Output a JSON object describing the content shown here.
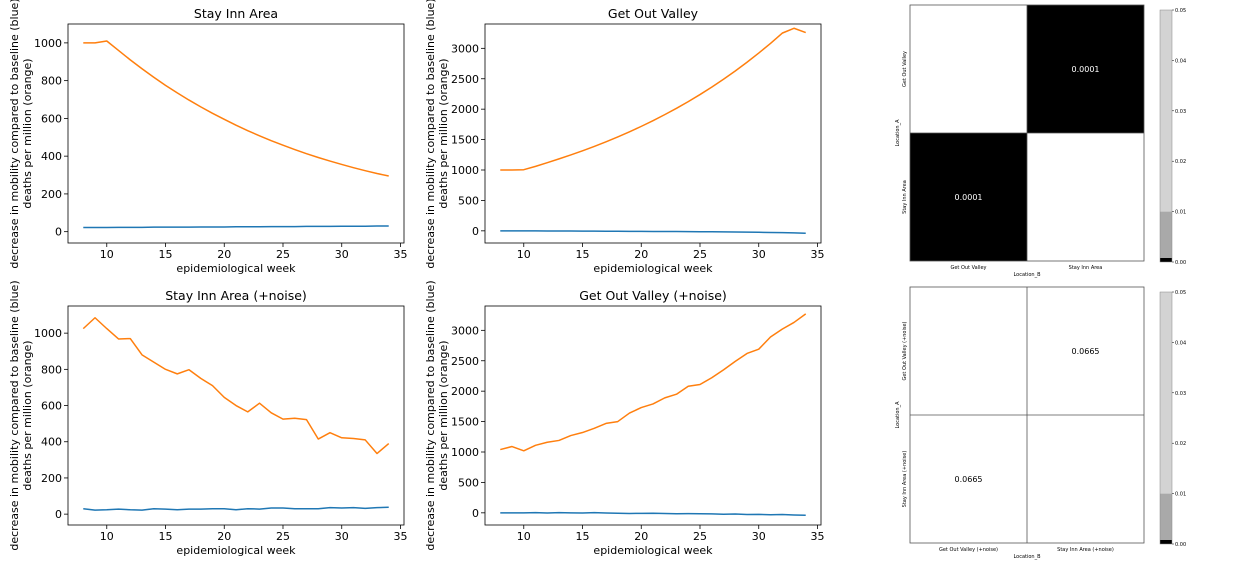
{
  "colors": {
    "mobility": "#1f77b4",
    "deaths": "#ff7f0e",
    "axis": "#000000",
    "heat_black": "#000000",
    "heat_white": "#ffffff",
    "cbar_light": "#d3d3d3",
    "cbar_mid": "#a9a9a9",
    "cbar_dark": "#000000"
  },
  "chart_data": [
    {
      "type": "line",
      "title": "Stay Inn Area",
      "xlabel": "epidemiological week",
      "ylabel_line1": "decrease in mobility compared to baseline (blue)",
      "ylabel_line2": "deaths per million (orange)",
      "xlim": [
        6.7,
        35.3
      ],
      "ylim": [
        -60,
        1100
      ],
      "xticks": [
        10,
        15,
        20,
        25,
        30,
        35
      ],
      "yticks": [
        0,
        200,
        400,
        600,
        800,
        1000
      ],
      "x": [
        8,
        9,
        10,
        11,
        12,
        13,
        14,
        15,
        16,
        17,
        18,
        19,
        20,
        21,
        22,
        23,
        24,
        25,
        26,
        27,
        28,
        29,
        30,
        31,
        32,
        33,
        34
      ],
      "series": [
        {
          "color": "#ff7f0e",
          "values": [
            1000,
            1000,
            1010,
            960,
            910,
            863,
            818,
            775,
            735,
            697,
            661,
            627,
            595,
            564,
            535,
            508,
            482,
            458,
            435,
            413,
            393,
            374,
            356,
            339,
            323,
            308,
            295
          ]
        },
        {
          "color": "#1f77b4",
          "values": [
            22,
            22,
            22,
            23,
            23,
            23,
            24,
            24,
            24,
            24,
            25,
            25,
            25,
            26,
            26,
            26,
            27,
            27,
            27,
            28,
            28,
            28,
            29,
            29,
            29,
            30,
            30
          ]
        }
      ]
    },
    {
      "type": "line",
      "title": "Get Out Valley",
      "xlabel": "epidemiological week",
      "ylabel_line1": "decrease in mobility compared to baseline (blue)",
      "ylabel_line2": "deaths per million (orange)",
      "xlim": [
        6.7,
        35.3
      ],
      "ylim": [
        -200,
        3400
      ],
      "xticks": [
        10,
        15,
        20,
        25,
        30,
        35
      ],
      "yticks": [
        0,
        500,
        1000,
        1500,
        2000,
        2500,
        3000
      ],
      "x": [
        8,
        9,
        10,
        11,
        12,
        13,
        14,
        15,
        16,
        17,
        18,
        19,
        20,
        21,
        22,
        23,
        24,
        25,
        26,
        27,
        28,
        29,
        30,
        31,
        32,
        33,
        34
      ],
      "series": [
        {
          "color": "#ff7f0e",
          "values": [
            1000,
            1000,
            1005,
            1060,
            1120,
            1183,
            1248,
            1316,
            1388,
            1464,
            1544,
            1628,
            1717,
            1811,
            1910,
            2014,
            2124,
            2240,
            2362,
            2491,
            2627,
            2771,
            2922,
            3081,
            3250,
            3330,
            3260
          ]
        },
        {
          "color": "#1f77b4",
          "values": [
            0,
            0,
            -1,
            -1,
            -2,
            -2,
            -3,
            -4,
            -5,
            -6,
            -7,
            -8,
            -9,
            -10,
            -11,
            -12,
            -13,
            -14,
            -16,
            -18,
            -20,
            -22,
            -24,
            -27,
            -30,
            -33,
            -40
          ]
        }
      ]
    },
    {
      "type": "heatmap",
      "rows": [
        "Get Out Valley",
        "Stay Inn Area"
      ],
      "cols": [
        "Get Out Valley",
        "Stay Inn Area"
      ],
      "xlabel": "Location_B",
      "ylabel": "Location_A",
      "cells": [
        {
          "row": 0,
          "col": 0,
          "value": null,
          "fill": "#ffffff"
        },
        {
          "row": 0,
          "col": 1,
          "value": "0.0001",
          "fill": "#000000"
        },
        {
          "row": 1,
          "col": 0,
          "value": "0.0001",
          "fill": "#000000"
        },
        {
          "row": 1,
          "col": 1,
          "value": null,
          "fill": "#ffffff"
        }
      ],
      "colorbar_ticks": [
        "0.00",
        "0.01",
        "0.02",
        "0.03",
        "0.04",
        "0.05"
      ]
    },
    {
      "type": "line",
      "title": "Stay Inn Area (+noise)",
      "xlabel": "epidemiological week",
      "ylabel_line1": "decrease in mobility compared to baseline (blue)",
      "ylabel_line2": "deaths per million (orange)",
      "xlim": [
        6.7,
        35.3
      ],
      "ylim": [
        -60,
        1150
      ],
      "xticks": [
        10,
        15,
        20,
        25,
        30,
        35
      ],
      "yticks": [
        0,
        200,
        400,
        600,
        800,
        1000
      ],
      "x": [
        8,
        9,
        10,
        11,
        12,
        13,
        14,
        15,
        16,
        17,
        18,
        19,
        20,
        21,
        22,
        23,
        24,
        25,
        26,
        27,
        28,
        29,
        30,
        31,
        32,
        33,
        34
      ],
      "series": [
        {
          "color": "#ff7f0e",
          "values": [
            1025,
            1085,
            1025,
            968,
            970,
            880,
            840,
            800,
            775,
            798,
            750,
            710,
            645,
            600,
            565,
            613,
            560,
            525,
            530,
            522,
            415,
            450,
            422,
            418,
            410,
            335,
            390
          ]
        },
        {
          "color": "#1f77b4",
          "values": [
            30,
            22,
            24,
            28,
            24,
            22,
            30,
            28,
            24,
            28,
            28,
            30,
            30,
            24,
            30,
            28,
            34,
            34,
            30,
            30,
            30,
            36,
            34,
            36,
            32,
            36,
            38
          ]
        }
      ]
    },
    {
      "type": "line",
      "title": "Get Out Valley (+noise)",
      "xlabel": "epidemiological week",
      "ylabel_line1": "decrease in mobility compared to baseline (blue)",
      "ylabel_line2": "deaths per million (orange)",
      "xlim": [
        6.7,
        35.3
      ],
      "ylim": [
        -200,
        3400
      ],
      "xticks": [
        10,
        15,
        20,
        25,
        30,
        35
      ],
      "yticks": [
        0,
        500,
        1000,
        1500,
        2000,
        2500,
        3000
      ],
      "x": [
        8,
        9,
        10,
        11,
        12,
        13,
        14,
        15,
        16,
        17,
        18,
        19,
        20,
        21,
        22,
        23,
        24,
        25,
        26,
        27,
        28,
        29,
        30,
        31,
        32,
        33,
        34
      ],
      "series": [
        {
          "color": "#ff7f0e",
          "values": [
            1040,
            1090,
            1020,
            1110,
            1160,
            1190,
            1270,
            1320,
            1390,
            1470,
            1500,
            1640,
            1730,
            1790,
            1890,
            1950,
            2080,
            2110,
            2220,
            2350,
            2490,
            2620,
            2690,
            2890,
            3020,
            3130,
            3270
          ]
        },
        {
          "color": "#1f77b4",
          "values": [
            0,
            0,
            0,
            4,
            -3,
            3,
            0,
            -3,
            3,
            -3,
            -6,
            -10,
            -8,
            -6,
            -12,
            -15,
            -14,
            -16,
            -18,
            -24,
            -20,
            -27,
            -25,
            -32,
            -28,
            -35,
            -40
          ]
        }
      ]
    },
    {
      "type": "heatmap",
      "rows": [
        "Get Out Valley (+noise)",
        "Stay Inn Area (+noise)"
      ],
      "cols": [
        "Get Out Valley (+noise)",
        "Stay Inn Area (+noise)"
      ],
      "xlabel": "Location_B",
      "ylabel": "Location_A",
      "cells": [
        {
          "row": 0,
          "col": 0,
          "value": null,
          "fill": "#ffffff"
        },
        {
          "row": 0,
          "col": 1,
          "value": "0.0665",
          "fill": "#ffffff"
        },
        {
          "row": 1,
          "col": 0,
          "value": "0.0665",
          "fill": "#ffffff"
        },
        {
          "row": 1,
          "col": 1,
          "value": null,
          "fill": "#ffffff"
        }
      ],
      "colorbar_ticks": [
        "0.00",
        "0.01",
        "0.02",
        "0.03",
        "0.04",
        "0.05"
      ]
    }
  ]
}
